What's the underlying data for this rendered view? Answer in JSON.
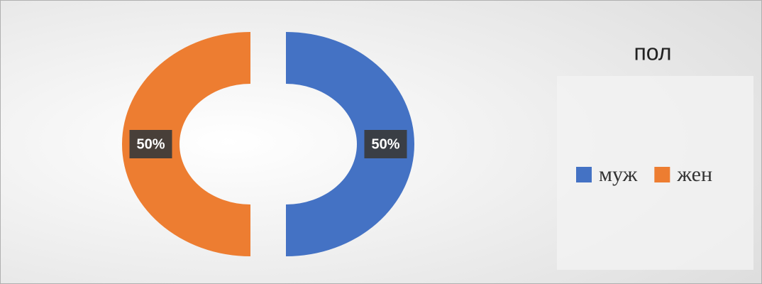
{
  "chart_data": {
    "type": "donut",
    "title": "пол",
    "categories": [
      "муж",
      "жен"
    ],
    "values": [
      50,
      50
    ],
    "value_labels": [
      "50%",
      "50%"
    ],
    "colors": [
      "#4472c4",
      "#ed7d31"
    ],
    "legend": "right"
  }
}
